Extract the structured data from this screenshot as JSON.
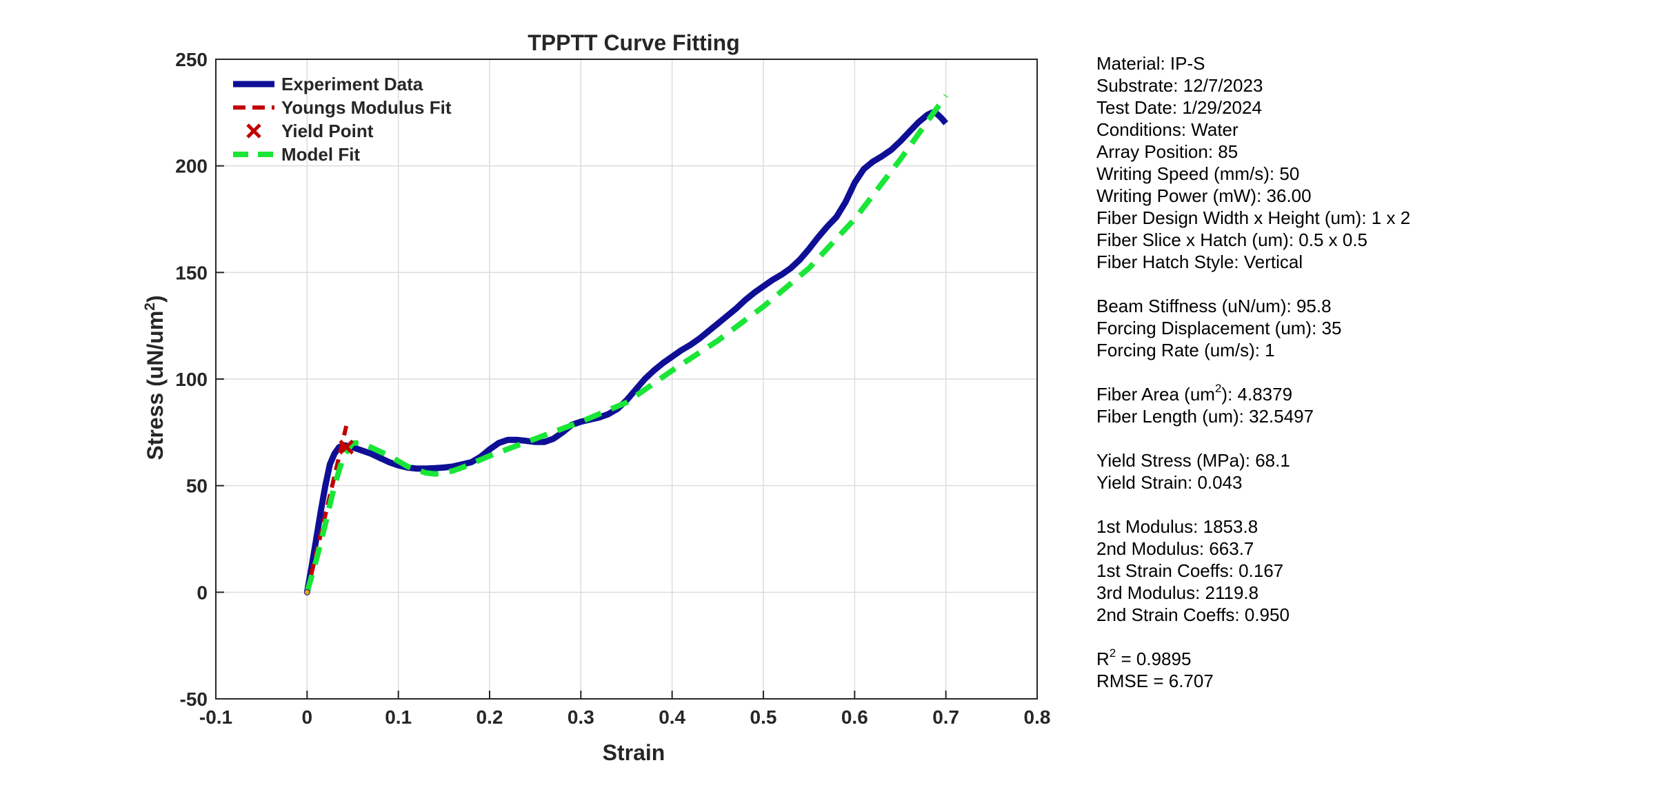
{
  "chart_data": {
    "type": "line",
    "title": "TPPTT Curve Fitting",
    "xlabel": "Strain",
    "ylabel_main": "Stress (uN/um",
    "ylabel_sup": "2",
    "ylabel_tail": ")",
    "xlim": [
      -0.1,
      0.8
    ],
    "ylim": [
      -50,
      250
    ],
    "xticks": [
      -0.1,
      0,
      0.1,
      0.2,
      0.3,
      0.4,
      0.5,
      0.6,
      0.7,
      0.8
    ],
    "xtick_labels": [
      "-0.1",
      "0",
      "0.1",
      "0.2",
      "0.3",
      "0.4",
      "0.5",
      "0.6",
      "0.7",
      "0.8"
    ],
    "yticks": [
      -50,
      0,
      50,
      100,
      150,
      200,
      250
    ],
    "ytick_labels": [
      "-50",
      "0",
      "50",
      "100",
      "150",
      "200",
      "250"
    ],
    "grid": true,
    "legend_position": "top-left",
    "series": [
      {
        "name": "Experiment Data",
        "style": "solid",
        "color": "#0f0f96",
        "x": [
          0,
          0.005,
          0.01,
          0.015,
          0.02,
          0.025,
          0.03,
          0.035,
          0.04,
          0.045,
          0.05,
          0.06,
          0.07,
          0.08,
          0.09,
          0.1,
          0.11,
          0.12,
          0.13,
          0.14,
          0.15,
          0.16,
          0.17,
          0.18,
          0.19,
          0.2,
          0.21,
          0.22,
          0.23,
          0.24,
          0.25,
          0.26,
          0.27,
          0.28,
          0.29,
          0.3,
          0.31,
          0.32,
          0.33,
          0.34,
          0.35,
          0.36,
          0.37,
          0.38,
          0.39,
          0.4,
          0.41,
          0.42,
          0.43,
          0.44,
          0.45,
          0.46,
          0.47,
          0.48,
          0.49,
          0.5,
          0.51,
          0.52,
          0.53,
          0.54,
          0.55,
          0.56,
          0.57,
          0.58,
          0.59,
          0.6,
          0.61,
          0.62,
          0.63,
          0.64,
          0.65,
          0.66,
          0.67,
          0.68,
          0.685,
          0.69,
          0.695,
          0.7
        ],
        "y": [
          0,
          12,
          25,
          38,
          50,
          60,
          65,
          68,
          69,
          68.5,
          68,
          66.5,
          65,
          63,
          61,
          59.5,
          58.5,
          58,
          58,
          58.2,
          58.5,
          59,
          60,
          61,
          63.5,
          67,
          70,
          71.5,
          71.5,
          71,
          70.5,
          70.5,
          72,
          75,
          78.5,
          80,
          81,
          82,
          83.5,
          86,
          90,
          95,
          100,
          104,
          107.5,
          110.5,
          113.5,
          116,
          119,
          122.5,
          126,
          129.5,
          133,
          137,
          140.5,
          143.5,
          146.5,
          149,
          152,
          156,
          161,
          166.5,
          171.5,
          176,
          183,
          192,
          198.5,
          202,
          204.5,
          207.5,
          211.5,
          216,
          220.5,
          224,
          225,
          224.5,
          222.5,
          220
        ]
      },
      {
        "name": "Youngs Modulus Fit",
        "style": "dashed",
        "color": "#c00000",
        "x": [
          0,
          0.043
        ],
        "y": [
          0,
          78
        ]
      },
      {
        "name": "Yield Point",
        "style": "marker-x",
        "color": "#c00000",
        "x": [
          0.043
        ],
        "y": [
          68.1
        ]
      },
      {
        "name": "Model Fit",
        "style": "dashed",
        "color": "#19e636",
        "x": [
          0,
          0.01,
          0.02,
          0.03,
          0.04,
          0.05,
          0.06,
          0.07,
          0.08,
          0.09,
          0.1,
          0.11,
          0.12,
          0.13,
          0.14,
          0.15,
          0.16,
          0.17,
          0.2,
          0.25,
          0.3,
          0.35,
          0.4,
          0.45,
          0.5,
          0.55,
          0.6,
          0.65,
          0.7
        ],
        "y": [
          0,
          15,
          32,
          50,
          64,
          70,
          70,
          68,
          66,
          64,
          61.5,
          59,
          57.5,
          56,
          55.5,
          56,
          57,
          58.5,
          64,
          72,
          80,
          89,
          104,
          118,
          134,
          152,
          175,
          203,
          233
        ]
      }
    ]
  },
  "info": {
    "lines": [
      "Material: IP-S",
      "Substrate: 12/7/2023",
      "Test Date: 1/29/2024",
      "Conditions: Water",
      "Array Position: 85",
      "Writing Speed (mm/s): 50",
      "Writing Power (mW): 36.00",
      "Fiber Design Width x Height (um): 1 x 2",
      "Fiber Slice x Hatch (um): 0.5 x 0.5",
      "Fiber Hatch Style: Vertical"
    ],
    "beam_lines": [
      "Beam Stiffness (uN/um): 95.8",
      "Forcing Displacement (um): 35",
      "Forcing Rate (um/s): 1"
    ],
    "fiber_area_pre": "Fiber Area (um",
    "fiber_area_sup": "2",
    "fiber_area_post": "): 4.8379",
    "fiber_length": "Fiber Length (um): 32.5497",
    "yield_lines": [
      "Yield Stress (MPa): 68.1",
      "Yield Strain: 0.043"
    ],
    "modulus_lines": [
      "1st Modulus: 1853.8",
      "2nd Modulus: 663.7",
      "1st Strain Coeffs: 0.167",
      "3rd Modulus: 2119.8",
      "2nd Strain Coeffs: 0.950"
    ],
    "r2_pre": "R",
    "r2_sup": "2",
    "r2_post": " = 0.9895",
    "rmse": "RMSE = 6.707"
  }
}
